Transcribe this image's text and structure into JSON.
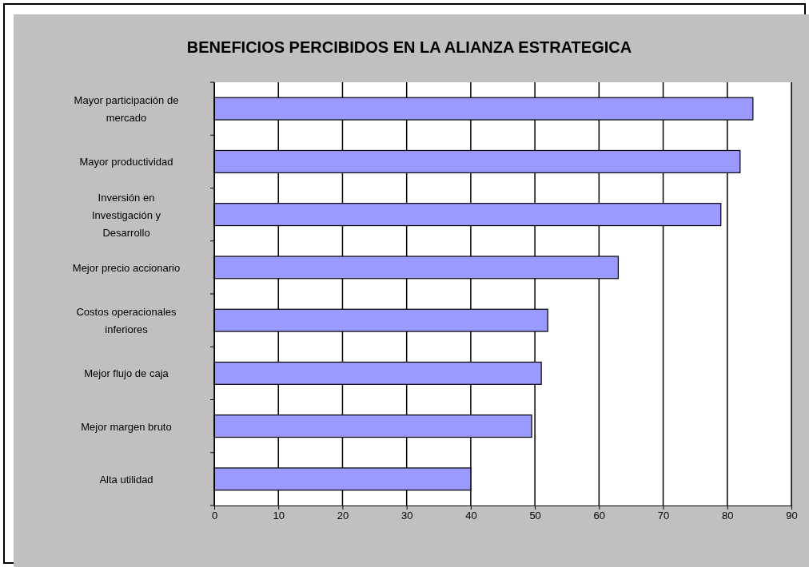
{
  "chart_data": {
    "type": "bar",
    "orientation": "horizontal",
    "title": "BENEFICIOS PERCIBIDOS EN LA ALIANZA ESTRATEGICA",
    "categories": [
      "Mayor participación de mercado",
      "Mayor productividad",
      "Inversión en Investigación y Desarrollo",
      "Mejor precio accionario",
      "Costos operacionales inferiores",
      "Mejor flujo de caja",
      "Mejor margen bruto",
      "Alta utilidad"
    ],
    "values": [
      84,
      82,
      79,
      63,
      52,
      51,
      49.5,
      40
    ],
    "color": "#9999ff",
    "xlim": [
      0,
      90
    ],
    "xticks": [
      0,
      10,
      20,
      30,
      40,
      50,
      60,
      70,
      80,
      90
    ],
    "grid": "x"
  }
}
